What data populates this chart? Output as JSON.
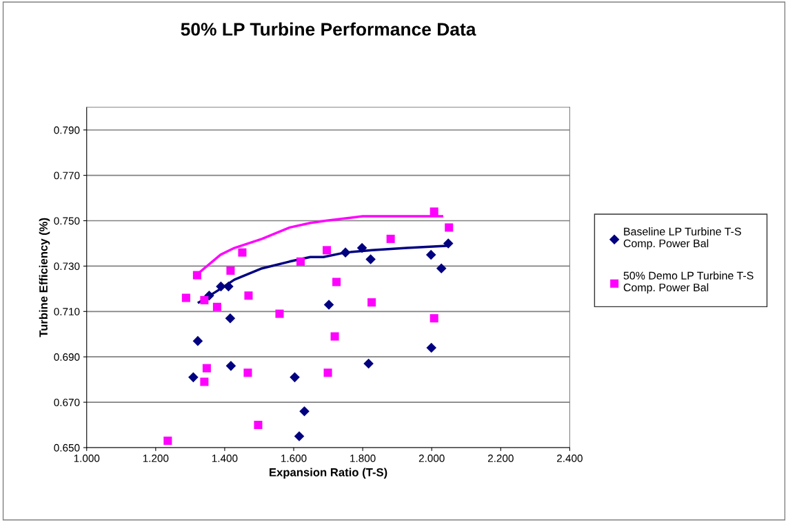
{
  "chart_data": {
    "type": "scatter",
    "title": "50% LP Turbine Performance Data",
    "xlabel": "Expansion Ratio (T-S)",
    "ylabel": "Turbine Efficiency (%)",
    "xlim": [
      1.0,
      2.4
    ],
    "xticks": [
      {
        "value": 1.0,
        "label": "1.000"
      },
      {
        "value": 1.2,
        "label": "1.200"
      },
      {
        "value": 1.4,
        "label": "1.400"
      },
      {
        "value": 1.6,
        "label": "1.600"
      },
      {
        "value": 1.8,
        "label": "1.800"
      },
      {
        "value": 2.0,
        "label": "2.000"
      },
      {
        "value": 2.2,
        "label": "2.200"
      },
      {
        "value": 2.4,
        "label": "2.400"
      }
    ],
    "ylim": [
      0.65,
      0.8
    ],
    "yticks": [
      {
        "value": 0.65,
        "label": "0.650"
      },
      {
        "value": 0.67,
        "label": "0.670"
      },
      {
        "value": 0.69,
        "label": "0.690"
      },
      {
        "value": 0.71,
        "label": "0.710"
      },
      {
        "value": 0.73,
        "label": "0.730"
      },
      {
        "value": 0.75,
        "label": "0.750"
      },
      {
        "value": 0.77,
        "label": "0.770"
      },
      {
        "value": 0.79,
        "label": "0.790"
      }
    ],
    "grid": "y",
    "legend": "right",
    "series": [
      {
        "name": "Baseline LP Turbine T-S Comp. Power Bal",
        "marker": "diamond",
        "color": "#000080",
        "x": [
          1.355,
          1.389,
          1.411,
          1.416,
          1.322,
          1.418,
          1.309,
          1.603,
          1.631,
          1.616,
          1.75,
          1.798,
          1.823,
          1.702,
          1.817,
          1.998,
          2.028,
          2.048,
          1.999
        ],
        "values": [
          0.717,
          0.721,
          0.721,
          0.707,
          0.697,
          0.686,
          0.681,
          0.681,
          0.666,
          0.655,
          0.736,
          0.738,
          0.733,
          0.713,
          0.687,
          0.735,
          0.729,
          0.74,
          0.694
        ]
      },
      {
        "name": "50% Demo LP Turbine T-S Comp. Power Bal",
        "marker": "square",
        "color": "#ff00ff",
        "x": [
          1.32,
          1.288,
          1.341,
          1.378,
          1.417,
          1.451,
          1.469,
          1.559,
          1.62,
          1.348,
          1.341,
          1.467,
          1.497,
          1.235,
          1.696,
          1.724,
          1.881,
          1.826,
          1.719,
          1.699,
          2.007,
          2.05,
          2.007
        ],
        "values": [
          0.726,
          0.716,
          0.715,
          0.712,
          0.728,
          0.736,
          0.717,
          0.709,
          0.732,
          0.685,
          0.679,
          0.683,
          0.66,
          0.653,
          0.737,
          0.723,
          0.742,
          0.714,
          0.699,
          0.683,
          0.754,
          0.747,
          0.707
        ]
      },
      {
        "type": "line",
        "color": "#000080",
        "x": [
          1.325,
          1.388,
          1.428,
          1.508,
          1.588,
          1.648,
          1.686,
          1.75,
          1.827,
          1.928,
          2.048
        ],
        "values": [
          0.714,
          0.72,
          0.724,
          0.729,
          0.732,
          0.734,
          0.734,
          0.736,
          0.737,
          0.738,
          0.739
        ]
      },
      {
        "type": "line",
        "color": "#ff00ff",
        "x": [
          1.325,
          1.388,
          1.428,
          1.508,
          1.588,
          1.648,
          1.693,
          1.8,
          1.881,
          1.961,
          2.001,
          2.03
        ],
        "values": [
          0.727,
          0.735,
          0.738,
          0.742,
          0.747,
          0.749,
          0.75,
          0.752,
          0.752,
          0.752,
          0.752,
          0.752
        ]
      }
    ]
  }
}
